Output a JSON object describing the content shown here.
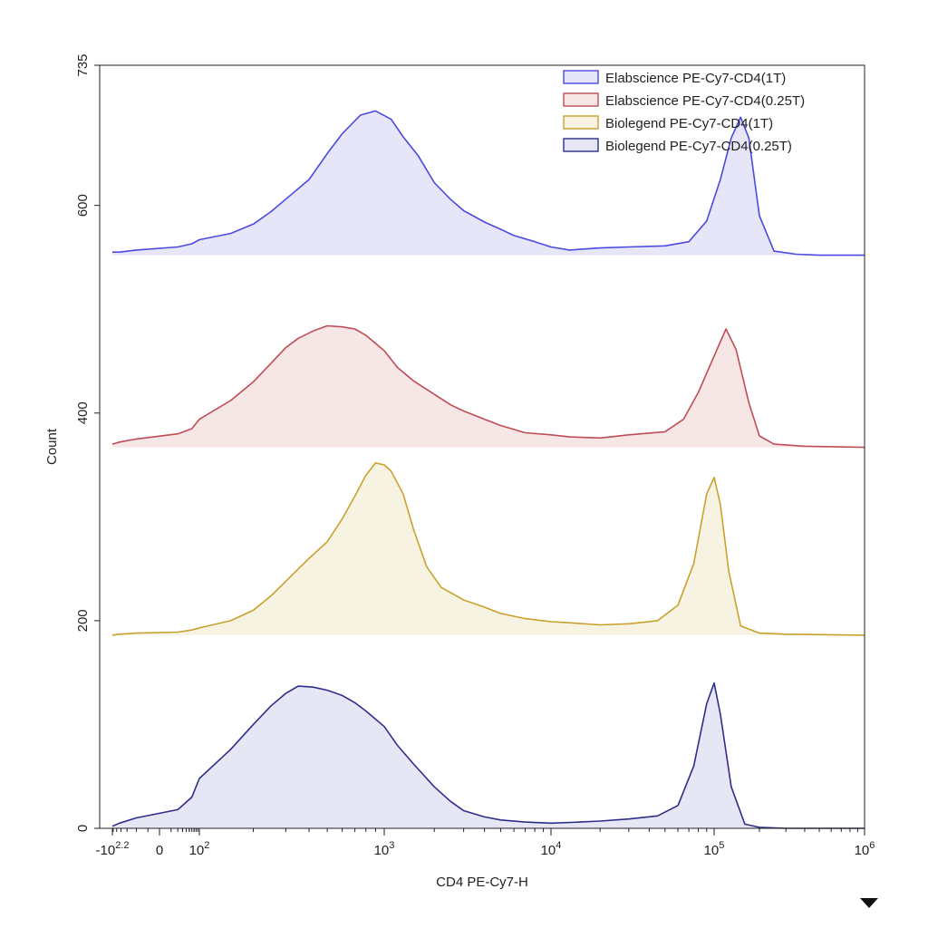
{
  "chart_data": {
    "type": "area",
    "xlabel": "CD4 PE-Cy7-H",
    "ylabel": "Count",
    "ylim": [
      0,
      735
    ],
    "y_ticks": [
      "0",
      "200",
      "400",
      "600",
      "735"
    ],
    "x_scale": "biexponential",
    "x_tick_labels": [
      {
        "base": "-10",
        "exp": "2.2"
      },
      {
        "base": "0",
        "exp": ""
      },
      {
        "base": "10",
        "exp": "2"
      },
      {
        "base": "10",
        "exp": "3"
      },
      {
        "base": "10",
        "exp": "4"
      },
      {
        "base": "10",
        "exp": "5"
      },
      {
        "base": "10",
        "exp": "6"
      }
    ],
    "x_tick_values": [
      -158,
      0,
      100,
      1000,
      10000,
      100000,
      1000000
    ],
    "legend_position": "top-right",
    "series": [
      {
        "name": "Elabscience PE-Cy7-CD4(1T)",
        "color": "#4a4ae0",
        "fill": "#e6e6f8",
        "baseline": 552,
        "x": [
          -158,
          -100,
          -30,
          20,
          60,
          100,
          150,
          200,
          250,
          300,
          400,
          500,
          600,
          750,
          900,
          1100,
          1300,
          1600,
          2000,
          2500,
          3000,
          4000,
          5000,
          6000,
          8000,
          10000,
          13000,
          20000,
          30000,
          50000,
          70000,
          90000,
          110000,
          130000,
          150000,
          170000,
          200000,
          250000,
          350000,
          500000,
          1000000
        ],
        "y": [
          555,
          555,
          557,
          560,
          563,
          567,
          573,
          582,
          594,
          606,
          625,
          650,
          669,
          687,
          691,
          683,
          666,
          648,
          622,
          606,
          595,
          584,
          577,
          571,
          565,
          560,
          557,
          559,
          560,
          561,
          565,
          585,
          625,
          665,
          685,
          665,
          590,
          556,
          553,
          552,
          552
        ]
      },
      {
        "name": "Elabscience PE-Cy7-CD4(0.25T)",
        "color": "#c04c55",
        "fill": "#f6e6e6",
        "baseline": 367,
        "x": [
          -158,
          -100,
          -30,
          20,
          60,
          100,
          150,
          200,
          250,
          300,
          350,
          420,
          500,
          600,
          700,
          800,
          1000,
          1200,
          1500,
          2000,
          2500,
          3000,
          4000,
          5000,
          7000,
          10000,
          13000,
          20000,
          30000,
          50000,
          65000,
          80000,
          100000,
          120000,
          140000,
          170000,
          200000,
          250000,
          400000,
          1000000
        ],
        "y": [
          370,
          372,
          375,
          380,
          385,
          394,
          412,
          430,
          448,
          463,
          472,
          479,
          484,
          483,
          481,
          475,
          460,
          444,
          431,
          418,
          408,
          402,
          394,
          388,
          381,
          379,
          377,
          376,
          379,
          382,
          394,
          420,
          455,
          481,
          461,
          410,
          378,
          370,
          368,
          367
        ]
      },
      {
        "name": "Biolegend PE-Cy7-CD4(1T)",
        "color": "#c9a12c",
        "fill": "#f7f3e3",
        "baseline": 186,
        "x": [
          -158,
          -100,
          -30,
          20,
          60,
          100,
          150,
          200,
          250,
          300,
          400,
          500,
          600,
          700,
          800,
          900,
          1000,
          1100,
          1300,
          1500,
          1800,
          2200,
          3000,
          4000,
          5000,
          7000,
          10000,
          13000,
          20000,
          30000,
          45000,
          60000,
          75000,
          90000,
          100000,
          110000,
          125000,
          150000,
          200000,
          300000,
          1000000
        ],
        "y": [
          186,
          187,
          188,
          189,
          191,
          193,
          200,
          210,
          224,
          238,
          260,
          276,
          298,
          320,
          340,
          352,
          350,
          344,
          322,
          288,
          252,
          232,
          220,
          213,
          207,
          202,
          199,
          198,
          196,
          197,
          200,
          215,
          255,
          322,
          338,
          312,
          248,
          195,
          188,
          187,
          186
        ]
      },
      {
        "name": "Biolegend PE-Cy7-CD4(0.25T)",
        "color": "#2e2e8a",
        "fill": "#e6e6f5",
        "baseline": 0,
        "x": [
          -158,
          -100,
          -30,
          20,
          60,
          100,
          150,
          200,
          250,
          300,
          350,
          420,
          500,
          600,
          700,
          800,
          1000,
          1200,
          1500,
          2000,
          2500,
          3000,
          4000,
          5000,
          7000,
          10000,
          15000,
          20000,
          30000,
          45000,
          60000,
          75000,
          90000,
          100000,
          110000,
          130000,
          160000,
          200000,
          300000,
          1000000
        ],
        "y": [
          2,
          5,
          10,
          18,
          30,
          48,
          76,
          100,
          118,
          130,
          137,
          136,
          133,
          128,
          121,
          113,
          98,
          80,
          62,
          40,
          26,
          17,
          11,
          8,
          6,
          5,
          6,
          7,
          9,
          12,
          22,
          60,
          120,
          140,
          110,
          40,
          4,
          1,
          0,
          0
        ]
      }
    ]
  }
}
